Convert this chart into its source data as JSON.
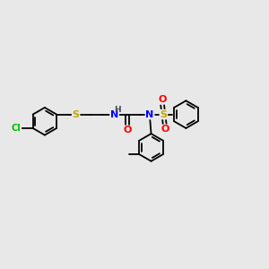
{
  "background_color": "#e8e8e8",
  "bond_color": "#000000",
  "atom_colors": {
    "Cl": "#00bb00",
    "S": "#bbaa00",
    "N": "#0000ff",
    "O": "#ff0000",
    "H": "#444444",
    "C": "#000000"
  },
  "figsize": [
    3.0,
    3.0
  ],
  "dpi": 100,
  "lw": 1.3,
  "ring_r": 0.52,
  "font_size": 7.5
}
